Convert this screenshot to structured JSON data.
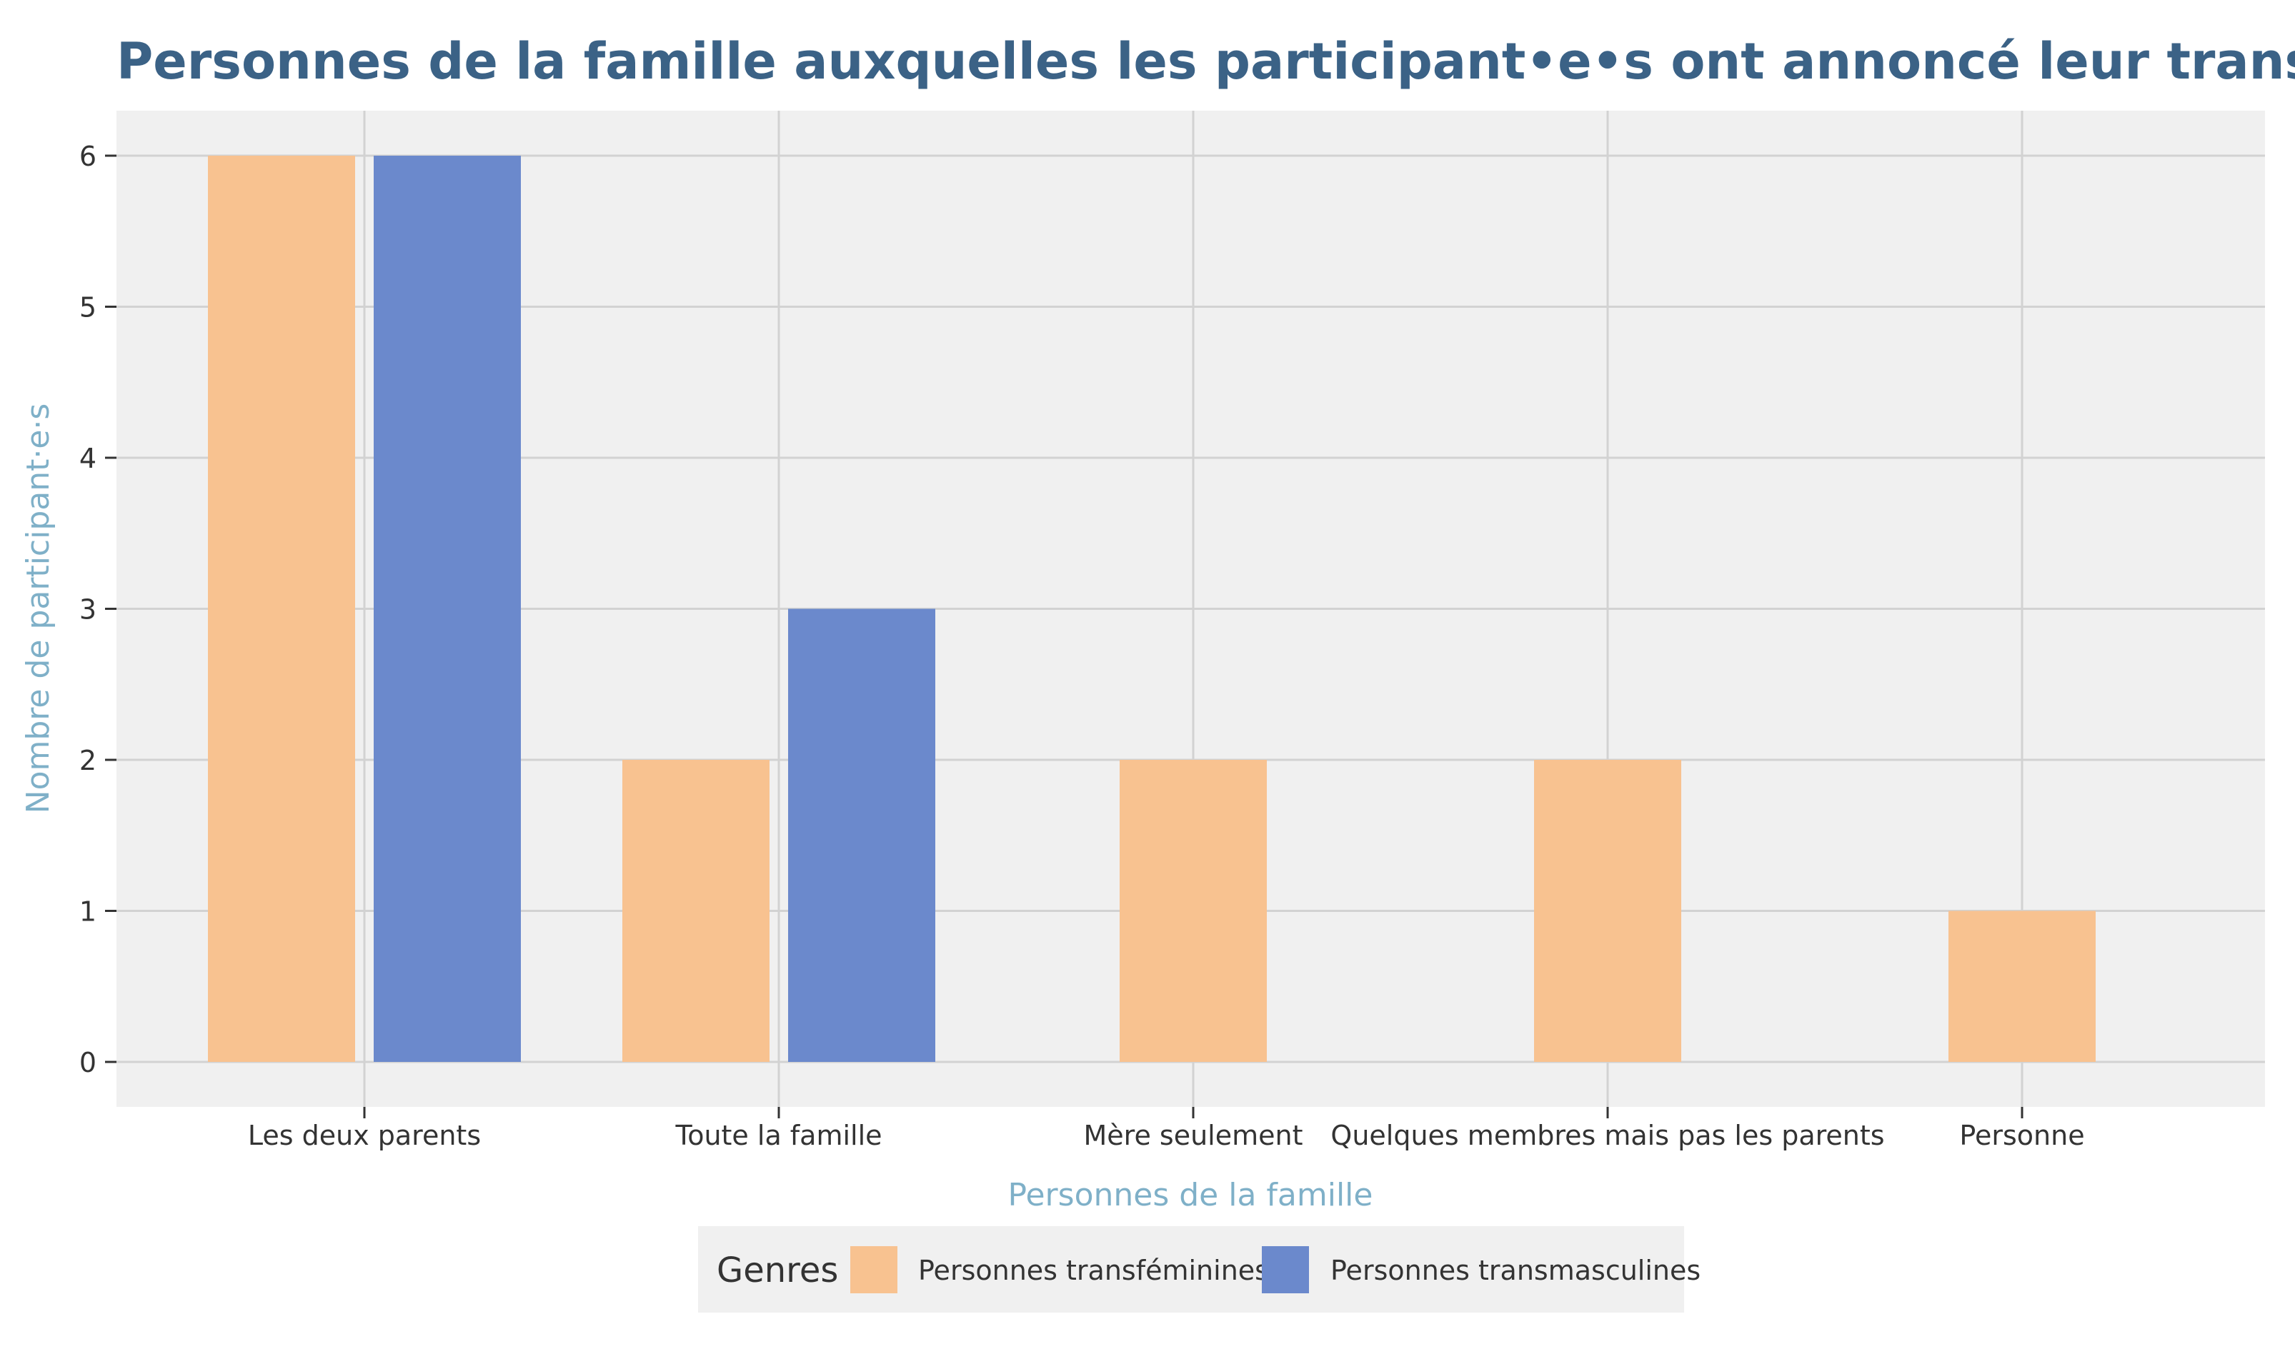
{
  "chart_data": {
    "type": "bar",
    "title": "Personnes de la famille auxquelles les participant•e•s ont annoncé leur transidentité",
    "xlabel": "Personnes de la famille",
    "ylabel": "Nombre de participant·e·s",
    "categories": [
      "Les deux parents",
      "Toute la famille",
      "Mère seulement",
      "Quelques membres mais pas les parents",
      "Personne"
    ],
    "series": [
      {
        "name": "Personnes transféminines",
        "color": "#f8c290",
        "values": [
          6,
          2,
          2,
          2,
          1
        ]
      },
      {
        "name": "Personnes transmasculines",
        "color": "#6b89cc",
        "values": [
          6,
          3,
          null,
          null,
          null
        ]
      }
    ],
    "ylim": [
      0,
      6
    ],
    "yticks": [
      0,
      1,
      2,
      3,
      4,
      5,
      6
    ],
    "grid": true,
    "legend": {
      "title": "Genres",
      "position": "bottom"
    },
    "colors": {
      "panel": "#f0f0f0",
      "grid": "#d2d2d2",
      "title": "#3b6286",
      "axis_title": "#7fb0c8"
    }
  }
}
